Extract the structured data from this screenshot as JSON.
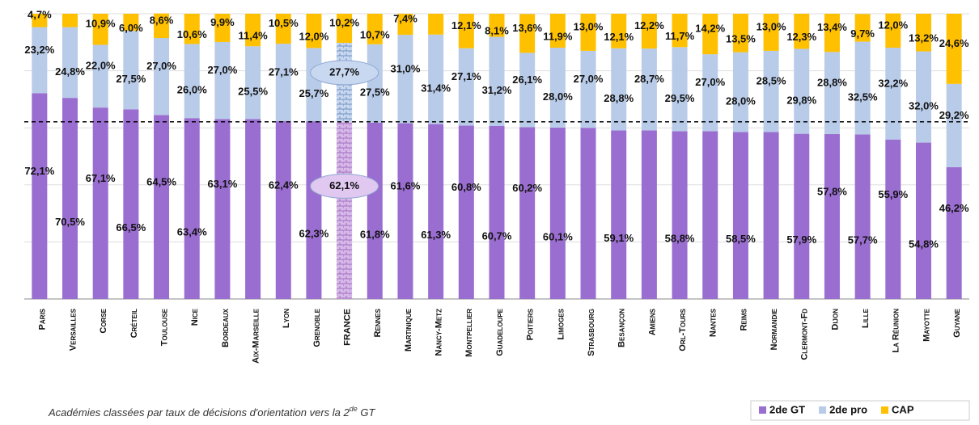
{
  "chart_data": {
    "type": "stacked-bar",
    "categories": [
      "Paris",
      "Versailles",
      "Corse",
      "Créteil",
      "Toulouse",
      "Nice",
      "Bordeaux",
      "Aix-Marseille",
      "Lyon",
      "Grenoble",
      "FRANCE",
      "Rennes",
      "Martinique",
      "Nancy-Metz",
      "Montpellier",
      "Guadeloupe",
      "Poitiers",
      "Limoges",
      "Strasbourg",
      "Besançon",
      "Amiens",
      "Orl-Tours",
      "Nantes",
      "Reims",
      "Normandie",
      "Clermont-Fd",
      "Dijon",
      "Lille",
      "La Réunion",
      "Mayotte",
      "Guyane"
    ],
    "series": [
      {
        "name": "2de GT",
        "color": "#9a6dd0",
        "values": [
          72.1,
          70.5,
          67.1,
          66.5,
          64.5,
          63.4,
          63.1,
          63.1,
          62.4,
          62.3,
          62.1,
          61.8,
          61.6,
          61.3,
          60.8,
          60.7,
          60.2,
          60.1,
          60.0,
          59.1,
          59.1,
          58.8,
          58.8,
          58.5,
          58.5,
          57.9,
          57.8,
          57.7,
          55.9,
          54.8,
          46.2
        ],
        "value_labels": [
          "72,1%",
          "70,5%",
          "67,1%",
          "66,5%",
          "64,5%",
          "63,4%",
          "63,1%",
          null,
          "62,4%",
          "62,3%",
          "62,1%",
          "61,8%",
          "61,6%",
          "61,3%",
          "60,8%",
          "60,7%",
          "60,2%",
          "60,1%",
          null,
          "59,1%",
          null,
          "58,8%",
          null,
          "58,5%",
          null,
          "57,9%",
          "57,8%",
          "57,7%",
          "55,9%",
          "54,8%",
          "46,2%"
        ]
      },
      {
        "name": "2de pro",
        "color": "#b8cbe8",
        "values": [
          23.2,
          24.8,
          22.0,
          27.5,
          27.0,
          26.0,
          27.0,
          25.5,
          27.1,
          25.7,
          27.7,
          27.5,
          31.0,
          31.4,
          27.1,
          31.2,
          26.1,
          28.0,
          27.0,
          28.8,
          28.7,
          29.5,
          27.0,
          28.0,
          28.5,
          29.8,
          28.8,
          32.5,
          32.2,
          32.0,
          29.2
        ],
        "value_labels": [
          "23,2%",
          "24,8%",
          "22,0%",
          "27,5%",
          "27,0%",
          "26,0%",
          "27,0%",
          "25,5%",
          "27,1%",
          "25,7%",
          "27,7%",
          "27,5%",
          "31,0%",
          "31,4%",
          "27,1%",
          "31,2%",
          "26,1%",
          "28,0%",
          "27,0%",
          "28,8%",
          "28,7%",
          "29,5%",
          "27,0%",
          "28,0%",
          "28,5%",
          "29,8%",
          "28,8%",
          "32,5%",
          "32,2%",
          "32,0%",
          "29,2%"
        ]
      },
      {
        "name": "CAP",
        "color": "#ffc000",
        "values": [
          4.7,
          4.7,
          10.9,
          6.0,
          8.6,
          10.6,
          9.9,
          11.4,
          10.5,
          12.0,
          10.2,
          10.7,
          7.4,
          7.3,
          12.1,
          8.1,
          13.6,
          11.9,
          13.0,
          12.1,
          12.2,
          11.7,
          14.2,
          13.5,
          13.0,
          12.3,
          13.4,
          9.7,
          12.0,
          13.2,
          24.6
        ],
        "value_labels": [
          "4,7%",
          null,
          "10,9%",
          "6,0%",
          "8,6%",
          "10,6%",
          "9,9%",
          "11,4%",
          "10,5%",
          "12,0%",
          "10,2%",
          "10,7%",
          "7,4%",
          null,
          "12,1%",
          "8,1%",
          "13,6%",
          "11,9%",
          "13,0%",
          "12,1%",
          "12,2%",
          "11,7%",
          "14,2%",
          "13,5%",
          "13,0%",
          "12,3%",
          "13,4%",
          "9,7%",
          "12,0%",
          "13,2%",
          "24,6%"
        ]
      }
    ],
    "ylim": [
      0,
      100
    ],
    "yticks": [
      0,
      20,
      40,
      60,
      80,
      100
    ],
    "grid": true,
    "reference_category": 10,
    "note": [
      "Académies classées par taux de décisions d'orientation vers la 2",
      "de",
      " GT"
    ]
  }
}
